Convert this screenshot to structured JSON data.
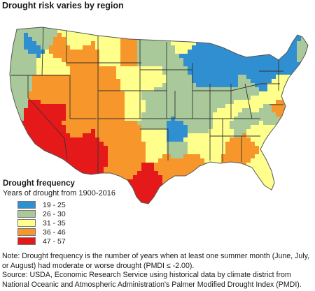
{
  "title": "Drought risk varies by region",
  "legend": {
    "title": "Drought frequency",
    "subtitle": "Years of drought from 1900-2016",
    "items": [
      {
        "label": "19 - 25",
        "color": "#2f8fd0"
      },
      {
        "label": "26 - 30",
        "color": "#a9c99b"
      },
      {
        "label": "31 - 35",
        "color": "#ffff8c"
      },
      {
        "label": "36 - 46",
        "color": "#f7962b"
      },
      {
        "label": "47 - 57",
        "color": "#e6191a"
      }
    ]
  },
  "notes": {
    "note": "Note: Drought frequency is the number of years when at least one summer month (June, July, or August) had moderate or worse drought (PMDI ≤ -2.00).",
    "source": "Source: USDA, Economic Research Service using historical data by climate district from National Oceanic and Atmospheric Administration's Palmer Modified Drought Index (PMDI)."
  }
}
